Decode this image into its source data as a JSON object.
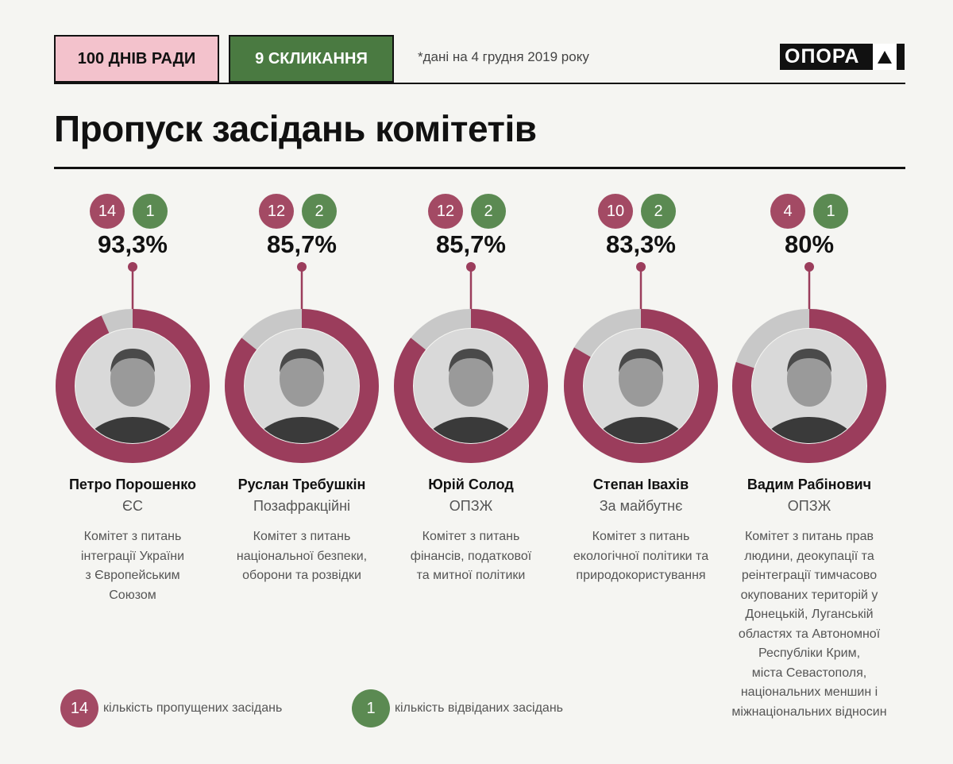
{
  "header": {
    "tag1": "100 ДНІВ РАДИ",
    "tag2": "9 СКЛИКАННЯ",
    "note": "*дані на 4 грудня 2019 року",
    "logo": "ОПОРА",
    "title": "Пропуск засідань комітетів"
  },
  "colors": {
    "missed": "#a34a64",
    "attended": "#5b8a52",
    "ring_missed": "#9b3d5c",
    "ring_attended": "#c8c8c8"
  },
  "chart_data": {
    "type": "pie",
    "title": "Пропуск засідань комітетів",
    "series": [
      {
        "name": "Петро Порошенко",
        "faction": "ЄС",
        "missed": 14,
        "attended": 1,
        "percent_label": "93,3%",
        "percent": 93.3,
        "committee": [
          "Комітет з питань",
          "інтеграції України",
          "з Європейським",
          "Союзом"
        ]
      },
      {
        "name": "Руслан Требушкін",
        "faction": "Позафракційні",
        "missed": 12,
        "attended": 2,
        "percent_label": "85,7%",
        "percent": 85.7,
        "committee": [
          "Комітет з питань",
          "національної безпеки,",
          "оборони та розвідки"
        ]
      },
      {
        "name": "Юрій Солод",
        "faction": "ОПЗЖ",
        "missed": 12,
        "attended": 2,
        "percent_label": "85,7%",
        "percent": 85.7,
        "committee": [
          "Комітет з питань",
          "фінансів, податкової",
          "та митної політики"
        ]
      },
      {
        "name": "Степан Івахів",
        "faction": "За майбутнє",
        "missed": 10,
        "attended": 2,
        "percent_label": "83,3%",
        "percent": 83.3,
        "committee": [
          "Комітет з питань",
          "екологічної політики та",
          "природокористування"
        ]
      },
      {
        "name": "Вадим Рабінович",
        "faction": "ОПЗЖ",
        "missed": 4,
        "attended": 1,
        "percent_label": "80%",
        "percent": 80,
        "committee": [
          "Комітет з питань прав",
          "людини, деокупації та",
          "реінтеграції тимчасово",
          "окупованих територій у",
          "Донецькій, Луганській",
          "областях та Автономної",
          "Республіки Крим,",
          "міста Севастополя,",
          "національних меншин і",
          "міжнаціональних відносин"
        ]
      }
    ]
  },
  "legend": {
    "missed_value": "14",
    "missed_label": "кількість пропущених засідань",
    "attended_value": "1",
    "attended_label": "кількість відвіданих засідань"
  }
}
